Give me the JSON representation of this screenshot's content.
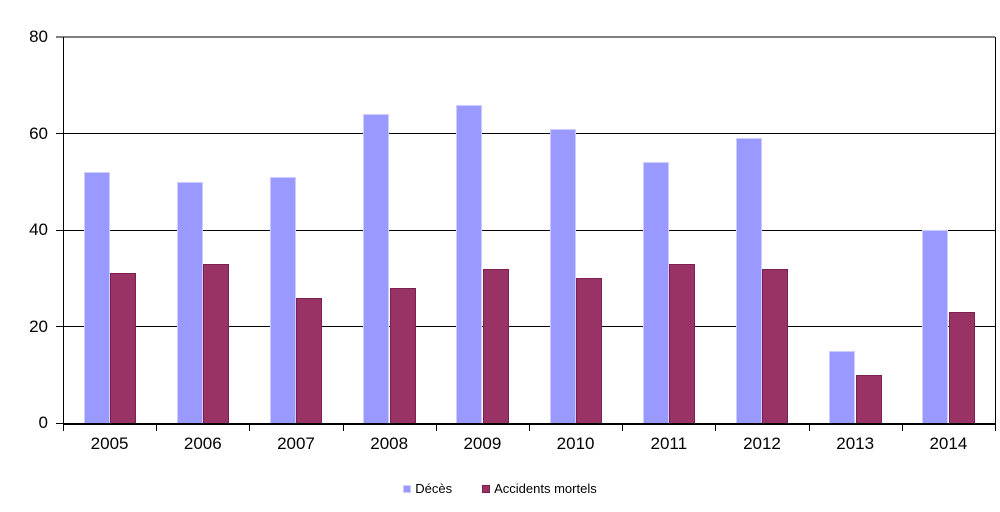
{
  "chart_data": {
    "type": "bar",
    "title": "",
    "xlabel": "",
    "ylabel": "",
    "categories": [
      "2005",
      "2006",
      "2007",
      "2008",
      "2009",
      "2010",
      "2011",
      "2012",
      "2013",
      "2014"
    ],
    "series": [
      {
        "name": "Décès",
        "fill_color": "#9999FF",
        "border_color": "#CCCCFF",
        "values": [
          52,
          50,
          51,
          64,
          66,
          61,
          54,
          59,
          15,
          40
        ]
      },
      {
        "name": "Accidents mortels",
        "fill_color": "#993366",
        "border_color": "#7A2150",
        "values": [
          31,
          33,
          26,
          28,
          32,
          30,
          33,
          32,
          10,
          23
        ]
      }
    ],
    "ylim": [
      0,
      80
    ],
    "yticks": [
      0,
      20,
      40,
      60,
      80
    ],
    "grid": true,
    "legend_position": "bottom",
    "colors": {
      "plot_background": "#FFFFFF",
      "gridline": "#000000",
      "plot_top_border": "#808080",
      "axis": "#000000",
      "text": "#000000"
    }
  }
}
